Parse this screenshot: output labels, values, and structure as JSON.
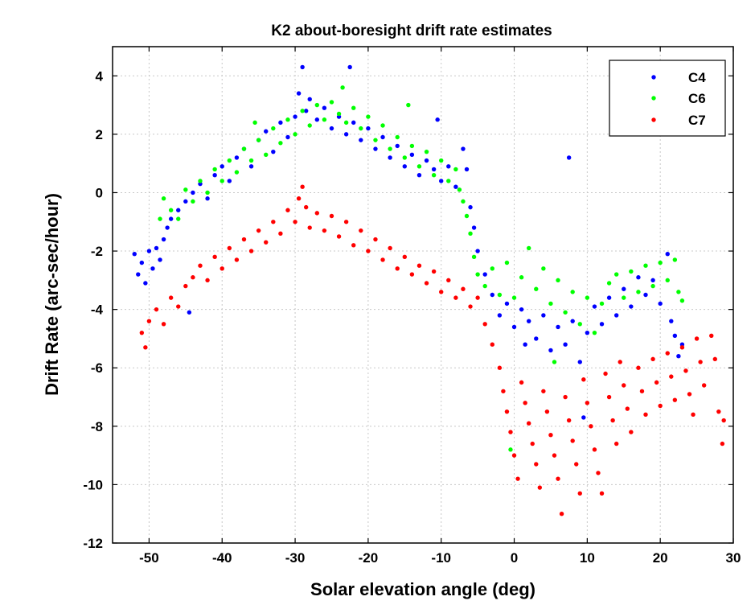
{
  "chart_data": {
    "type": "scatter",
    "title": "K2 about-boresight drift rate estimates",
    "xlabel": "Solar elevation angle (deg)",
    "ylabel": "Drift Rate (arc-sec/hour)",
    "xlim": [
      -55,
      30
    ],
    "ylim": [
      -12,
      5
    ],
    "xticks": [
      -50,
      -40,
      -30,
      -20,
      -10,
      0,
      10,
      20,
      30
    ],
    "yticks": [
      4,
      2,
      0,
      -2,
      -4,
      -6,
      -8,
      -10,
      -12
    ],
    "grid": true,
    "legend_position": "top-right",
    "series": [
      {
        "name": "C4",
        "color": "#0000ff",
        "points": [
          [
            -52,
            -2.1
          ],
          [
            -51.5,
            -2.8
          ],
          [
            -51,
            -2.4
          ],
          [
            -50.5,
            -3.1
          ],
          [
            -50,
            -2.0
          ],
          [
            -49.5,
            -2.6
          ],
          [
            -49,
            -1.9
          ],
          [
            -48.5,
            -2.3
          ],
          [
            -48,
            -1.6
          ],
          [
            -47.5,
            -1.2
          ],
          [
            -47,
            -0.9
          ],
          [
            -46,
            -0.6
          ],
          [
            -45,
            -0.3
          ],
          [
            -44.5,
            -4.1
          ],
          [
            -44,
            0.0
          ],
          [
            -43,
            0.3
          ],
          [
            -42,
            -0.2
          ],
          [
            -41,
            0.6
          ],
          [
            -40,
            0.9
          ],
          [
            -39,
            0.4
          ],
          [
            -38,
            1.2
          ],
          [
            -37,
            1.5
          ],
          [
            -36,
            0.9
          ],
          [
            -35,
            1.8
          ],
          [
            -34,
            2.1
          ],
          [
            -33,
            1.4
          ],
          [
            -32,
            2.4
          ],
          [
            -31,
            1.9
          ],
          [
            -30,
            2.6
          ],
          [
            -29.5,
            3.4
          ],
          [
            -29,
            4.3
          ],
          [
            -28.5,
            2.8
          ],
          [
            -28,
            3.2
          ],
          [
            -27,
            2.5
          ],
          [
            -26,
            2.9
          ],
          [
            -25,
            2.2
          ],
          [
            -24,
            2.6
          ],
          [
            -23,
            2.0
          ],
          [
            -22.5,
            4.3
          ],
          [
            -22,
            2.4
          ],
          [
            -21,
            1.8
          ],
          [
            -20,
            2.2
          ],
          [
            -19,
            1.5
          ],
          [
            -18,
            1.9
          ],
          [
            -17,
            1.2
          ],
          [
            -16,
            1.6
          ],
          [
            -15,
            0.9
          ],
          [
            -14,
            1.3
          ],
          [
            -13,
            0.6
          ],
          [
            -12,
            1.1
          ],
          [
            -11,
            0.8
          ],
          [
            -10.5,
            2.5
          ],
          [
            -10,
            0.4
          ],
          [
            -9,
            0.9
          ],
          [
            -8,
            0.2
          ],
          [
            -7,
            1.5
          ],
          [
            -6.5,
            0.8
          ],
          [
            -6,
            -0.5
          ],
          [
            -5.5,
            -1.2
          ],
          [
            -5,
            -2.0
          ],
          [
            -4,
            -2.8
          ],
          [
            -3,
            -3.5
          ],
          [
            -2,
            -4.2
          ],
          [
            -1,
            -3.8
          ],
          [
            0,
            -4.6
          ],
          [
            1,
            -4.0
          ],
          [
            1.5,
            -5.2
          ],
          [
            2,
            -4.4
          ],
          [
            3,
            -5.0
          ],
          [
            4,
            -4.2
          ],
          [
            5,
            -5.4
          ],
          [
            6,
            -4.6
          ],
          [
            7,
            -5.2
          ],
          [
            7.5,
            1.2
          ],
          [
            8,
            -4.4
          ],
          [
            9,
            -5.8
          ],
          [
            9.5,
            -7.7
          ],
          [
            10,
            -4.8
          ],
          [
            11,
            -3.9
          ],
          [
            12,
            -4.5
          ],
          [
            13,
            -3.6
          ],
          [
            14,
            -4.2
          ],
          [
            15,
            -3.3
          ],
          [
            16,
            -3.9
          ],
          [
            17,
            -2.9
          ],
          [
            18,
            -3.5
          ],
          [
            19,
            -3.0
          ],
          [
            20,
            -3.8
          ],
          [
            21,
            -2.1
          ],
          [
            21.5,
            -4.4
          ],
          [
            22,
            -4.9
          ],
          [
            22.5,
            -5.6
          ],
          [
            23,
            -5.2
          ]
        ]
      },
      {
        "name": "C6",
        "color": "#00ff00",
        "points": [
          [
            -48.5,
            -0.9
          ],
          [
            -48,
            -0.2
          ],
          [
            -47,
            -0.6
          ],
          [
            -46,
            -0.9
          ],
          [
            -45,
            0.1
          ],
          [
            -44,
            -0.3
          ],
          [
            -43,
            0.4
          ],
          [
            -42,
            0.0
          ],
          [
            -41,
            0.8
          ],
          [
            -40,
            0.4
          ],
          [
            -39,
            1.1
          ],
          [
            -38,
            0.7
          ],
          [
            -37,
            1.5
          ],
          [
            -36,
            1.1
          ],
          [
            -35.5,
            2.4
          ],
          [
            -35,
            1.8
          ],
          [
            -34,
            1.3
          ],
          [
            -33,
            2.2
          ],
          [
            -32,
            1.7
          ],
          [
            -31,
            2.5
          ],
          [
            -30,
            2.0
          ],
          [
            -29,
            2.8
          ],
          [
            -28,
            2.3
          ],
          [
            -27,
            3.0
          ],
          [
            -26,
            2.5
          ],
          [
            -25,
            3.1
          ],
          [
            -24,
            2.7
          ],
          [
            -23.5,
            3.6
          ],
          [
            -23,
            2.4
          ],
          [
            -22,
            2.9
          ],
          [
            -21,
            2.2
          ],
          [
            -20,
            2.6
          ],
          [
            -19,
            1.8
          ],
          [
            -18,
            2.3
          ],
          [
            -17,
            1.5
          ],
          [
            -16,
            1.9
          ],
          [
            -15,
            1.2
          ],
          [
            -14.5,
            3.0
          ],
          [
            -14,
            1.6
          ],
          [
            -13,
            0.9
          ],
          [
            -12,
            1.4
          ],
          [
            -11,
            0.6
          ],
          [
            -10,
            1.1
          ],
          [
            -9,
            0.4
          ],
          [
            -8,
            0.8
          ],
          [
            -7.5,
            0.1
          ],
          [
            -7,
            -0.3
          ],
          [
            -6.5,
            -0.8
          ],
          [
            -6,
            -1.4
          ],
          [
            -5.5,
            -2.2
          ],
          [
            -5,
            -2.8
          ],
          [
            -4,
            -3.2
          ],
          [
            -3,
            -2.6
          ],
          [
            -2,
            -3.5
          ],
          [
            -1,
            -2.4
          ],
          [
            0,
            -3.6
          ],
          [
            1,
            -2.9
          ],
          [
            2,
            -1.9
          ],
          [
            3,
            -3.3
          ],
          [
            4,
            -2.6
          ],
          [
            5,
            -3.8
          ],
          [
            6,
            -3.0
          ],
          [
            7,
            -4.1
          ],
          [
            8,
            -3.4
          ],
          [
            9,
            -4.5
          ],
          [
            10,
            -3.6
          ],
          [
            11,
            -4.8
          ],
          [
            12,
            -3.8
          ],
          [
            13,
            -3.1
          ],
          [
            14,
            -2.8
          ],
          [
            15,
            -3.6
          ],
          [
            16,
            -2.7
          ],
          [
            17,
            -3.4
          ],
          [
            18,
            -2.5
          ],
          [
            19,
            -3.2
          ],
          [
            20,
            -2.4
          ],
          [
            21,
            -3.0
          ],
          [
            22,
            -2.3
          ],
          [
            22.5,
            -3.4
          ],
          [
            23,
            -3.7
          ],
          [
            -0.5,
            -8.8
          ],
          [
            5.5,
            -5.8
          ]
        ]
      },
      {
        "name": "C7",
        "color": "#ff0000",
        "points": [
          [
            -51,
            -4.8
          ],
          [
            -50.5,
            -5.3
          ],
          [
            -50,
            -4.4
          ],
          [
            -49,
            -4.0
          ],
          [
            -48,
            -4.5
          ],
          [
            -47,
            -3.6
          ],
          [
            -46,
            -3.9
          ],
          [
            -45,
            -3.2
          ],
          [
            -44,
            -2.9
          ],
          [
            -43,
            -2.5
          ],
          [
            -42,
            -3.0
          ],
          [
            -41,
            -2.2
          ],
          [
            -40,
            -2.6
          ],
          [
            -39,
            -1.9
          ],
          [
            -38,
            -2.3
          ],
          [
            -37,
            -1.6
          ],
          [
            -36,
            -2.0
          ],
          [
            -35,
            -1.3
          ],
          [
            -34,
            -1.7
          ],
          [
            -33,
            -1.0
          ],
          [
            -32,
            -1.4
          ],
          [
            -31,
            -0.6
          ],
          [
            -30,
            -1.0
          ],
          [
            -29.5,
            -0.2
          ],
          [
            -29,
            0.2
          ],
          [
            -28.5,
            -0.5
          ],
          [
            -28,
            -1.2
          ],
          [
            -27,
            -0.7
          ],
          [
            -26,
            -1.3
          ],
          [
            -25,
            -0.8
          ],
          [
            -24,
            -1.5
          ],
          [
            -23,
            -1.0
          ],
          [
            -22,
            -1.8
          ],
          [
            -21,
            -1.3
          ],
          [
            -20,
            -2.0
          ],
          [
            -19,
            -1.6
          ],
          [
            -18,
            -2.3
          ],
          [
            -17,
            -1.9
          ],
          [
            -16,
            -2.6
          ],
          [
            -15,
            -2.2
          ],
          [
            -14,
            -2.8
          ],
          [
            -13,
            -2.5
          ],
          [
            -12,
            -3.1
          ],
          [
            -11,
            -2.7
          ],
          [
            -10,
            -3.4
          ],
          [
            -9,
            -3.0
          ],
          [
            -8,
            -3.6
          ],
          [
            -7,
            -3.3
          ],
          [
            -6,
            -3.9
          ],
          [
            -5,
            -3.6
          ],
          [
            -4,
            -4.5
          ],
          [
            -3,
            -5.2
          ],
          [
            -2,
            -6.0
          ],
          [
            -1.5,
            -6.8
          ],
          [
            -1,
            -7.5
          ],
          [
            -0.5,
            -8.2
          ],
          [
            0,
            -9.0
          ],
          [
            0.5,
            -9.8
          ],
          [
            1,
            -6.5
          ],
          [
            1.5,
            -7.2
          ],
          [
            2,
            -7.9
          ],
          [
            2.5,
            -8.6
          ],
          [
            3,
            -9.3
          ],
          [
            3.5,
            -10.1
          ],
          [
            4,
            -6.8
          ],
          [
            4.5,
            -7.5
          ],
          [
            5,
            -8.3
          ],
          [
            5.5,
            -9.0
          ],
          [
            6,
            -9.8
          ],
          [
            6.5,
            -11.0
          ],
          [
            7,
            -7.0
          ],
          [
            7.5,
            -7.8
          ],
          [
            8,
            -8.5
          ],
          [
            8.5,
            -9.3
          ],
          [
            9,
            -10.3
          ],
          [
            9.5,
            -6.4
          ],
          [
            10,
            -7.2
          ],
          [
            10.5,
            -8.0
          ],
          [
            11,
            -8.8
          ],
          [
            11.5,
            -9.6
          ],
          [
            12,
            -10.3
          ],
          [
            12.5,
            -6.2
          ],
          [
            13,
            -7.0
          ],
          [
            13.5,
            -7.8
          ],
          [
            14,
            -8.6
          ],
          [
            14.5,
            -5.8
          ],
          [
            15,
            -6.6
          ],
          [
            15.5,
            -7.4
          ],
          [
            16,
            -8.2
          ],
          [
            17,
            -6.0
          ],
          [
            17.5,
            -6.8
          ],
          [
            18,
            -7.6
          ],
          [
            19,
            -5.7
          ],
          [
            19.5,
            -6.5
          ],
          [
            20,
            -7.3
          ],
          [
            21,
            -5.5
          ],
          [
            21.5,
            -6.3
          ],
          [
            22,
            -7.1
          ],
          [
            23,
            -5.3
          ],
          [
            23.5,
            -6.1
          ],
          [
            24,
            -6.9
          ],
          [
            25,
            -5.0
          ],
          [
            25.5,
            -5.8
          ],
          [
            26,
            -6.6
          ],
          [
            27,
            -4.9
          ],
          [
            27.5,
            -5.7
          ],
          [
            28,
            -7.5
          ],
          [
            28.5,
            -8.6
          ],
          [
            28.7,
            -7.8
          ],
          [
            24.5,
            -7.6
          ]
        ]
      }
    ]
  }
}
